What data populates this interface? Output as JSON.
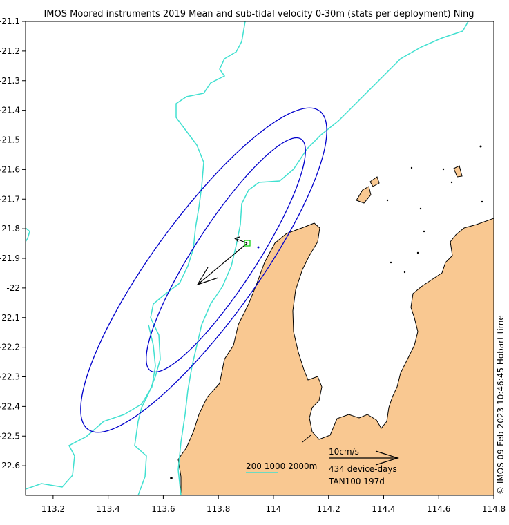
{
  "title": "IMOS Moored instruments 2019 Mean and sub-tidal velocity 0-30m (stats per deployment) Ning",
  "side_stamp": "© IMOS 09-Feb-2023 10:46:45 Hobart time",
  "axes": {
    "x_ticks": [
      "113.2",
      "113.4",
      "113.6",
      "113.8",
      "114",
      "114.2",
      "114.4",
      "114.6",
      "114.8"
    ],
    "x_values": [
      113.2,
      113.4,
      113.6,
      113.8,
      114.0,
      114.2,
      114.4,
      114.6,
      114.8
    ],
    "y_ticks": [
      "-21.1",
      "-21.2",
      "-21.3",
      "-21.4",
      "-21.5",
      "-21.6",
      "-21.7",
      "-21.8",
      "-21.9",
      "-22",
      "-22.1",
      "-22.2",
      "-22.3",
      "-22.4",
      "-22.5",
      "-22.6"
    ],
    "y_values": [
      -21.1,
      -21.2,
      -21.3,
      -21.4,
      -21.5,
      -21.6,
      -21.7,
      -21.8,
      -21.9,
      -22.0,
      -22.1,
      -22.2,
      -22.3,
      -22.4,
      -22.5,
      -22.6
    ],
    "xlim": [
      113.1,
      114.8
    ],
    "ylim": [
      -22.7,
      -21.1
    ]
  },
  "legend": {
    "isobaths": "200 1000 2000m",
    "scale_label": "10cm/s",
    "device_days": "434 device-days",
    "station": "TAN100 197d"
  },
  "colors": {
    "land": "#f9c891",
    "coast": "#000000",
    "isobath": "#40e0d0",
    "ellipse": "#0000cc",
    "arrow": "#000000",
    "mooring": "#00cc00"
  },
  "mooring": {
    "lon": 113.91,
    "lat": -21.85,
    "marker": "square"
  }
}
